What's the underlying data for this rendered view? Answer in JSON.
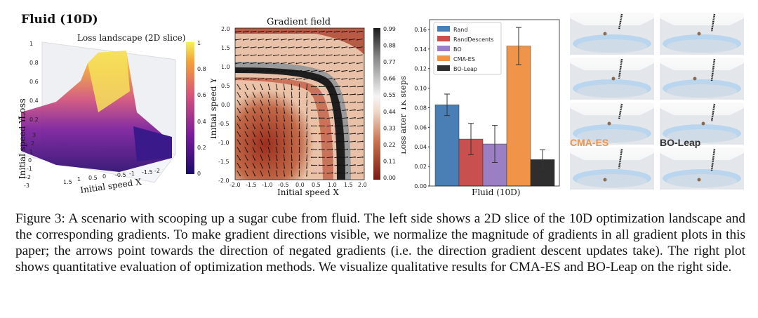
{
  "panel1": {
    "title": "Fluid (10D)",
    "subtitle": "Loss landscape (2D slice)",
    "zlabel": "Loss",
    "ylabel": "Initial speed Y",
    "xlabel": "Initial speed X",
    "z_ticks": [
      "1",
      "0.8",
      "0.6",
      "0.4",
      "0.2"
    ],
    "y_ticks": [
      "3",
      "2",
      "1",
      "0",
      "-1",
      "-2",
      "-3"
    ],
    "x_ticks": [
      "1.5",
      "1",
      "0.5",
      "0",
      "-0.5",
      "-1",
      "-1.5",
      "-2"
    ],
    "colorbar_ticks": [
      "1",
      "0.8",
      "0.6",
      "0.4",
      "0.2",
      "0"
    ]
  },
  "panel2": {
    "title": "Gradient field",
    "xlabel": "Initial speed X",
    "ylabel": "Initial speed Y",
    "x_ticks": [
      "-2.0",
      "-1.5",
      "-1.0",
      "-0.5",
      "0.0",
      "0.5",
      "1.0",
      "1.5",
      "2.0"
    ],
    "y_ticks": [
      "2.0",
      "1.5",
      "1.0",
      "0.5",
      "0.0",
      "-0.5",
      "-1.0",
      "-1.5",
      "-2.0"
    ],
    "colorbar_ticks": [
      "0.99",
      "0.88",
      "0.77",
      "0.66",
      "0.55",
      "0.44",
      "0.33",
      "0.22",
      "0.11",
      "0.00"
    ]
  },
  "chart_data": {
    "type": "bar",
    "xlabel": "Fluid (10D)",
    "ylabel": "Loss after 1K steps",
    "ylim": [
      0,
      0.17
    ],
    "y_ticks": [
      "0.00",
      "0.02",
      "0.04",
      "0.06",
      "0.08",
      "0.10",
      "0.12",
      "0.14",
      "0.16"
    ],
    "legend_position": "top-left",
    "series": [
      {
        "name": "Rand",
        "value": 0.083,
        "err": 0.011,
        "color": "#4a7fb5"
      },
      {
        "name": "RandDescents",
        "value": 0.048,
        "err": 0.016,
        "color": "#c8504e"
      },
      {
        "name": "BO",
        "value": 0.043,
        "err": 0.019,
        "color": "#9b7fc4"
      },
      {
        "name": "CMA-ES",
        "value": 0.143,
        "err": 0.019,
        "color": "#f0944a"
      },
      {
        "name": "BO-Leap",
        "value": 0.027,
        "err": 0.01,
        "color": "#2e2e2e"
      }
    ]
  },
  "panel4": {
    "label_left": "CMA-ES",
    "label_right": "BO-Leap",
    "label_left_color": "#f0944a"
  },
  "caption": "Figure 3: A scenario with scooping up a sugar cube from fluid. The left side shows a 2D slice of the 10D optimization landscape and the corresponding gradients. To make gradient directions visible, we normalize the magnitude of gradients in all gradient plots in this paper; the arrows point towards the direction of negated gradients (i.e. the direction gradient descent updates take). The right plot shows quantitative evaluation of optimization methods. We visualize qualitative results for CMA-ES and BO-Leap on the right side."
}
